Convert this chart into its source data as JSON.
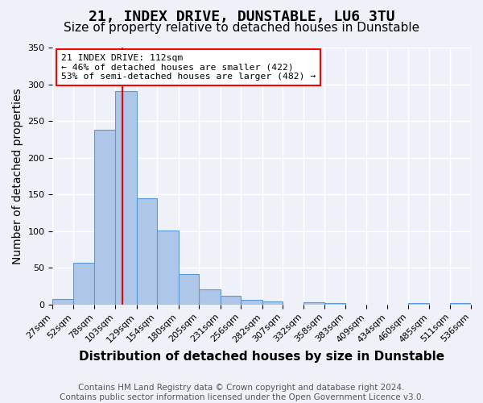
{
  "title": "21, INDEX DRIVE, DUNSTABLE, LU6 3TU",
  "subtitle": "Size of property relative to detached houses in Dunstable",
  "xlabel": "Distribution of detached houses by size in Dunstable",
  "ylabel": "Number of detached properties",
  "bar_edges": [
    27,
    52,
    78,
    103,
    129,
    154,
    180,
    205,
    231,
    256,
    282,
    307,
    332,
    358,
    383,
    409,
    434,
    460,
    485,
    511,
    536
  ],
  "bar_heights": [
    8,
    57,
    238,
    291,
    145,
    101,
    42,
    21,
    12,
    6,
    4,
    0,
    3,
    2,
    0,
    0,
    0,
    2,
    0,
    2
  ],
  "bar_color": "#aec6e8",
  "bar_edge_color": "#5b9bd5",
  "vline_x": 112,
  "vline_color": "red",
  "ylim": [
    0,
    350
  ],
  "yticks": [
    0,
    50,
    100,
    150,
    200,
    250,
    300,
    350
  ],
  "annotation_title": "21 INDEX DRIVE: 112sqm",
  "annotation_line1": "← 46% of detached houses are smaller (422)",
  "annotation_line2": "53% of semi-detached houses are larger (482) →",
  "annotation_box_color": "#ffffff",
  "annotation_box_edge_color": "red",
  "footer_line1": "Contains HM Land Registry data © Crown copyright and database right 2024.",
  "footer_line2": "Contains public sector information licensed under the Open Government Licence v3.0.",
  "bg_color": "#eef2f8",
  "plot_bg_color": "#eef2f8",
  "grid_color": "#ffffff",
  "title_fontsize": 13,
  "subtitle_fontsize": 11,
  "xlabel_fontsize": 11,
  "ylabel_fontsize": 10,
  "tick_label_size": 8,
  "footer_fontsize": 7.5
}
